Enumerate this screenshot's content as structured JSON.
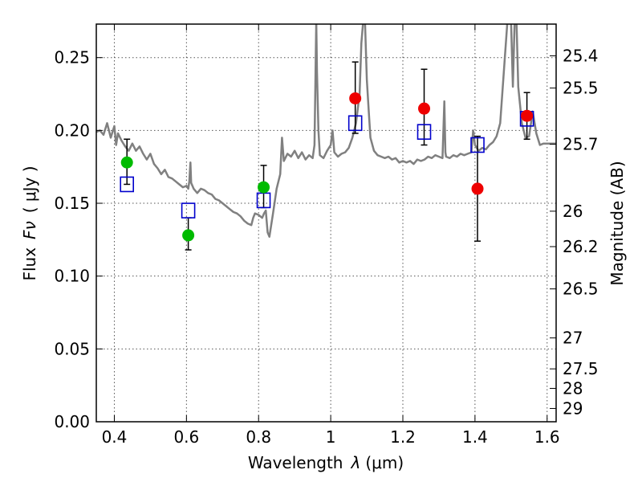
{
  "chart_data": {
    "type": "scatter",
    "xlabel_text": "Wavelength",
    "xlabel_symbol": "λ",
    "xlabel_unit": "(μm)",
    "ylabel_text": "Flux",
    "ylabel_symbol": "Fν",
    "ylabel_unit": "( μJy )",
    "y2label": "Magnitude (AB)",
    "xlim": [
      0.35,
      1.625
    ],
    "ylim": [
      0.0,
      0.273
    ],
    "grid": true,
    "x_ticks": [
      0.4,
      0.6,
      0.8,
      1.0,
      1.2,
      1.4,
      1.6
    ],
    "x_tick_labels": [
      "0.4",
      "0.6",
      "0.8",
      "1",
      "1.2",
      "1.4",
      "1.6"
    ],
    "y_ticks": [
      0.0,
      0.05,
      0.1,
      0.15,
      0.2,
      0.25
    ],
    "y_tick_labels": [
      "0.00",
      "0.05",
      "0.10",
      "0.15",
      "0.20",
      "0.25"
    ],
    "mag_ticks": [
      25.4,
      25.5,
      25.7,
      26,
      26.2,
      26.5,
      27,
      27.5,
      28,
      29
    ],
    "mag_tick_labels": [
      "25.4",
      "25.5",
      "25.7",
      "26",
      "26.2",
      "26.5",
      "27",
      "27.5",
      "28",
      "29"
    ],
    "colors": {
      "spectrum": "#808080",
      "green": "#00bb00",
      "red": "#ee0000",
      "model": "#0000cc",
      "errorbar": "#000000",
      "grid": "#555555"
    },
    "spectrum": [
      [
        0.35,
        0.199
      ],
      [
        0.36,
        0.2
      ],
      [
        0.37,
        0.197
      ],
      [
        0.38,
        0.205
      ],
      [
        0.39,
        0.195
      ],
      [
        0.4,
        0.203
      ],
      [
        0.405,
        0.19
      ],
      [
        0.41,
        0.198
      ],
      [
        0.42,
        0.193
      ],
      [
        0.43,
        0.189
      ],
      [
        0.44,
        0.186
      ],
      [
        0.45,
        0.191
      ],
      [
        0.46,
        0.186
      ],
      [
        0.47,
        0.189
      ],
      [
        0.48,
        0.184
      ],
      [
        0.49,
        0.18
      ],
      [
        0.5,
        0.184
      ],
      [
        0.51,
        0.177
      ],
      [
        0.52,
        0.174
      ],
      [
        0.53,
        0.17
      ],
      [
        0.54,
        0.173
      ],
      [
        0.55,
        0.168
      ],
      [
        0.56,
        0.167
      ],
      [
        0.57,
        0.165
      ],
      [
        0.58,
        0.163
      ],
      [
        0.59,
        0.161
      ],
      [
        0.6,
        0.162
      ],
      [
        0.605,
        0.16
      ],
      [
        0.608,
        0.165
      ],
      [
        0.611,
        0.178
      ],
      [
        0.613,
        0.164
      ],
      [
        0.62,
        0.16
      ],
      [
        0.63,
        0.157
      ],
      [
        0.64,
        0.16
      ],
      [
        0.65,
        0.159
      ],
      [
        0.66,
        0.157
      ],
      [
        0.67,
        0.156
      ],
      [
        0.68,
        0.153
      ],
      [
        0.69,
        0.152
      ],
      [
        0.7,
        0.15
      ],
      [
        0.71,
        0.148
      ],
      [
        0.72,
        0.146
      ],
      [
        0.73,
        0.144
      ],
      [
        0.74,
        0.143
      ],
      [
        0.75,
        0.141
      ],
      [
        0.76,
        0.138
      ],
      [
        0.77,
        0.136
      ],
      [
        0.78,
        0.135
      ],
      [
        0.785,
        0.14
      ],
      [
        0.79,
        0.143
      ],
      [
        0.8,
        0.142
      ],
      [
        0.81,
        0.14
      ],
      [
        0.815,
        0.143
      ],
      [
        0.82,
        0.145
      ],
      [
        0.825,
        0.13
      ],
      [
        0.83,
        0.127
      ],
      [
        0.84,
        0.143
      ],
      [
        0.85,
        0.16
      ],
      [
        0.86,
        0.17
      ],
      [
        0.865,
        0.195
      ],
      [
        0.87,
        0.179
      ],
      [
        0.88,
        0.184
      ],
      [
        0.89,
        0.182
      ],
      [
        0.9,
        0.186
      ],
      [
        0.91,
        0.181
      ],
      [
        0.92,
        0.185
      ],
      [
        0.93,
        0.18
      ],
      [
        0.94,
        0.183
      ],
      [
        0.95,
        0.181
      ],
      [
        0.955,
        0.19
      ],
      [
        0.958,
        0.24
      ],
      [
        0.96,
        0.275
      ],
      [
        0.962,
        0.24
      ],
      [
        0.966,
        0.2
      ],
      [
        0.97,
        0.183
      ],
      [
        0.98,
        0.181
      ],
      [
        0.99,
        0.186
      ],
      [
        1.0,
        0.19
      ],
      [
        1.005,
        0.2
      ],
      [
        1.01,
        0.185
      ],
      [
        1.02,
        0.182
      ],
      [
        1.03,
        0.184
      ],
      [
        1.04,
        0.185
      ],
      [
        1.05,
        0.188
      ],
      [
        1.06,
        0.195
      ],
      [
        1.07,
        0.205
      ],
      [
        1.08,
        0.225
      ],
      [
        1.085,
        0.26
      ],
      [
        1.09,
        0.275
      ],
      [
        1.095,
        0.275
      ],
      [
        1.1,
        0.235
      ],
      [
        1.105,
        0.215
      ],
      [
        1.11,
        0.195
      ],
      [
        1.12,
        0.186
      ],
      [
        1.13,
        0.183
      ],
      [
        1.14,
        0.182
      ],
      [
        1.15,
        0.181
      ],
      [
        1.16,
        0.182
      ],
      [
        1.17,
        0.18
      ],
      [
        1.18,
        0.181
      ],
      [
        1.19,
        0.178
      ],
      [
        1.2,
        0.179
      ],
      [
        1.21,
        0.178
      ],
      [
        1.22,
        0.179
      ],
      [
        1.23,
        0.177
      ],
      [
        1.24,
        0.18
      ],
      [
        1.25,
        0.179
      ],
      [
        1.26,
        0.18
      ],
      [
        1.27,
        0.182
      ],
      [
        1.28,
        0.181
      ],
      [
        1.29,
        0.183
      ],
      [
        1.3,
        0.182
      ],
      [
        1.31,
        0.181
      ],
      [
        1.315,
        0.22
      ],
      [
        1.318,
        0.185
      ],
      [
        1.32,
        0.182
      ],
      [
        1.33,
        0.181
      ],
      [
        1.34,
        0.183
      ],
      [
        1.35,
        0.182
      ],
      [
        1.36,
        0.184
      ],
      [
        1.37,
        0.183
      ],
      [
        1.38,
        0.184
      ],
      [
        1.39,
        0.185
      ],
      [
        1.395,
        0.2
      ],
      [
        1.4,
        0.19
      ],
      [
        1.41,
        0.186
      ],
      [
        1.42,
        0.188
      ],
      [
        1.43,
        0.187
      ],
      [
        1.44,
        0.19
      ],
      [
        1.45,
        0.192
      ],
      [
        1.46,
        0.196
      ],
      [
        1.47,
        0.205
      ],
      [
        1.48,
        0.24
      ],
      [
        1.49,
        0.275
      ],
      [
        1.5,
        0.275
      ],
      [
        1.505,
        0.23
      ],
      [
        1.51,
        0.275
      ],
      [
        1.515,
        0.275
      ],
      [
        1.52,
        0.23
      ],
      [
        1.53,
        0.205
      ],
      [
        1.54,
        0.195
      ],
      [
        1.55,
        0.196
      ],
      [
        1.56,
        0.213
      ],
      [
        1.57,
        0.198
      ],
      [
        1.58,
        0.19
      ],
      [
        1.59,
        0.191
      ],
      [
        1.6,
        0.191
      ],
      [
        1.61,
        0.191
      ],
      [
        1.625,
        0.191
      ]
    ],
    "points_green": [
      {
        "x": 0.435,
        "y": 0.178,
        "yerr_low": 0.163,
        "yerr_high": 0.194
      },
      {
        "x": 0.605,
        "y": 0.128,
        "yerr_low": 0.118,
        "yerr_high": 0.14
      },
      {
        "x": 0.814,
        "y": 0.161,
        "yerr_low": 0.147,
        "yerr_high": 0.176
      }
    ],
    "points_red": [
      {
        "x": 1.068,
        "y": 0.222,
        "yerr_low": 0.198,
        "yerr_high": 0.247
      },
      {
        "x": 1.259,
        "y": 0.215,
        "yerr_low": 0.19,
        "yerr_high": 0.242
      },
      {
        "x": 1.407,
        "y": 0.16,
        "yerr_low": 0.124,
        "yerr_high": 0.196
      },
      {
        "x": 1.544,
        "y": 0.21,
        "yerr_low": 0.194,
        "yerr_high": 0.226
      }
    ],
    "model_squares": [
      {
        "x": 0.435,
        "y": 0.163
      },
      {
        "x": 0.605,
        "y": 0.145
      },
      {
        "x": 0.814,
        "y": 0.152
      },
      {
        "x": 1.068,
        "y": 0.205
      },
      {
        "x": 1.259,
        "y": 0.199
      },
      {
        "x": 1.407,
        "y": 0.19
      },
      {
        "x": 1.544,
        "y": 0.208
      }
    ]
  }
}
